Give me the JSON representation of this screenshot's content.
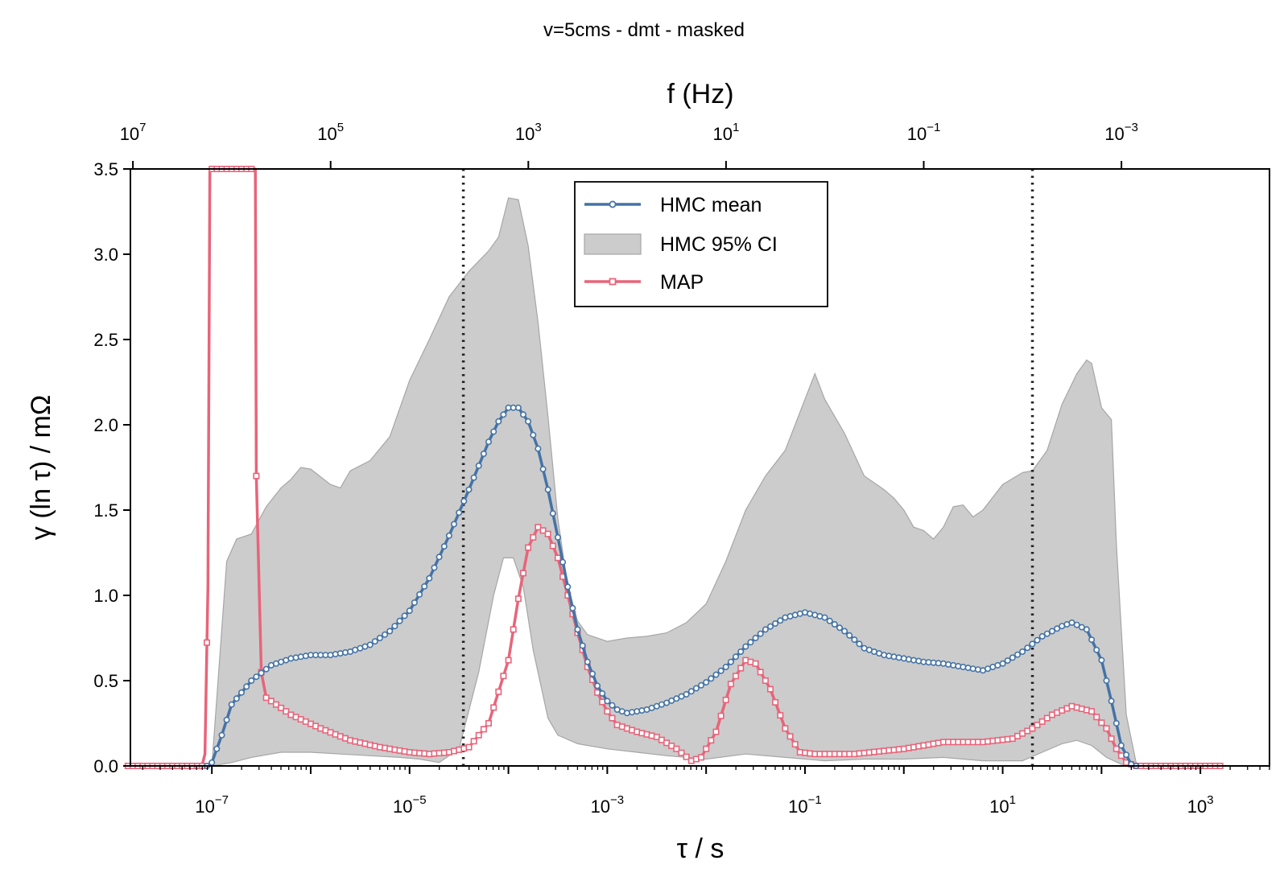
{
  "chart_data": {
    "type": "line",
    "title": "v=5cms - dmt - masked",
    "xlabel": "τ / s",
    "ylabel": "γ (ln τ) / mΩ",
    "x2label": "f (Hz)",
    "x_scale": "log",
    "xlim": [
      1.5e-08,
      5000
    ],
    "ylim": [
      0,
      3.5
    ],
    "yticks": [
      "0.0",
      "0.5",
      "1.0",
      "1.5",
      "2.0",
      "2.5",
      "3.0",
      "3.5"
    ],
    "xticks": [
      {
        "base": "10",
        "exp": "−7",
        "value": 1e-07
      },
      {
        "base": "10",
        "exp": "−5",
        "value": 1e-05
      },
      {
        "base": "10",
        "exp": "−3",
        "value": 0.001
      },
      {
        "base": "10",
        "exp": "−1",
        "value": 0.1
      },
      {
        "base": "10",
        "exp": "1",
        "value": 10
      },
      {
        "base": "10",
        "exp": "3",
        "value": 1000
      }
    ],
    "x2ticks": [
      {
        "base": "10",
        "exp": "7",
        "tau": 1.59e-08
      },
      {
        "base": "10",
        "exp": "5",
        "tau": 1.59e-06
      },
      {
        "base": "10",
        "exp": "3",
        "tau": 0.000159
      },
      {
        "base": "10",
        "exp": "1",
        "tau": 0.0159
      },
      {
        "base": "10",
        "exp": "−1",
        "tau": 1.59
      },
      {
        "base": "10",
        "exp": "−3",
        "tau": 159
      }
    ],
    "vlines": [
      3.5e-05,
      20
    ],
    "legend": {
      "position": "top-center",
      "entries": [
        "HMC mean",
        "HMC 95% CI",
        "MAP"
      ]
    },
    "colors": {
      "mean": "#4473a6",
      "map": "#e8647a",
      "ci_fill": "#cccccc",
      "ci_edge": "#a6a6a6",
      "vline": "#222222"
    },
    "series": [
      {
        "name": "HMC mean",
        "points": [
          [
            -7.05,
            0.0
          ],
          [
            -7.0,
            0.02
          ],
          [
            -6.9,
            0.18
          ],
          [
            -6.8,
            0.36
          ],
          [
            -6.6,
            0.5
          ],
          [
            -6.4,
            0.59
          ],
          [
            -6.2,
            0.63
          ],
          [
            -6.0,
            0.65
          ],
          [
            -5.8,
            0.65
          ],
          [
            -5.6,
            0.67
          ],
          [
            -5.4,
            0.71
          ],
          [
            -5.2,
            0.79
          ],
          [
            -5.0,
            0.91
          ],
          [
            -4.8,
            1.1
          ],
          [
            -4.6,
            1.35
          ],
          [
            -4.4,
            1.62
          ],
          [
            -4.3,
            1.76
          ],
          [
            -4.2,
            1.9
          ],
          [
            -4.1,
            2.02
          ],
          [
            -4.0,
            2.1
          ],
          [
            -3.9,
            2.1
          ],
          [
            -3.8,
            2.02
          ],
          [
            -3.7,
            1.86
          ],
          [
            -3.6,
            1.62
          ],
          [
            -3.5,
            1.34
          ],
          [
            -3.4,
            1.05
          ],
          [
            -3.3,
            0.8
          ],
          [
            -3.2,
            0.61
          ],
          [
            -3.1,
            0.47
          ],
          [
            -3.0,
            0.38
          ],
          [
            -2.9,
            0.33
          ],
          [
            -2.8,
            0.31
          ],
          [
            -2.6,
            0.33
          ],
          [
            -2.4,
            0.37
          ],
          [
            -2.2,
            0.42
          ],
          [
            -2.0,
            0.49
          ],
          [
            -1.8,
            0.58
          ],
          [
            -1.6,
            0.7
          ],
          [
            -1.4,
            0.8
          ],
          [
            -1.2,
            0.87
          ],
          [
            -1.0,
            0.9
          ],
          [
            -0.8,
            0.87
          ],
          [
            -0.6,
            0.79
          ],
          [
            -0.4,
            0.69
          ],
          [
            -0.2,
            0.65
          ],
          [
            0.0,
            0.63
          ],
          [
            0.2,
            0.61
          ],
          [
            0.4,
            0.6
          ],
          [
            0.6,
            0.58
          ],
          [
            0.8,
            0.56
          ],
          [
            1.0,
            0.6
          ],
          [
            1.2,
            0.67
          ],
          [
            1.4,
            0.76
          ],
          [
            1.6,
            0.82
          ],
          [
            1.7,
            0.84
          ],
          [
            1.85,
            0.8
          ],
          [
            2.0,
            0.62
          ],
          [
            2.1,
            0.38
          ],
          [
            2.2,
            0.12
          ],
          [
            2.3,
            0.01
          ],
          [
            2.35,
            0.0
          ]
        ]
      },
      {
        "name": "MAP",
        "points": [
          [
            -7.85,
            0.0
          ],
          [
            -7.1,
            0.0
          ],
          [
            -7.07,
            0.07
          ],
          [
            -7.04,
            1.05
          ],
          [
            -7.02,
            3.5
          ],
          [
            -6.56,
            3.5
          ],
          [
            -6.55,
            1.7
          ],
          [
            -6.5,
            0.55
          ],
          [
            -6.45,
            0.4
          ],
          [
            -6.2,
            0.3
          ],
          [
            -5.9,
            0.22
          ],
          [
            -5.6,
            0.15
          ],
          [
            -5.3,
            0.11
          ],
          [
            -5.0,
            0.08
          ],
          [
            -4.8,
            0.07
          ],
          [
            -4.6,
            0.08
          ],
          [
            -4.4,
            0.11
          ],
          [
            -4.2,
            0.25
          ],
          [
            -4.0,
            0.62
          ],
          [
            -3.9,
            0.98
          ],
          [
            -3.8,
            1.28
          ],
          [
            -3.7,
            1.4
          ],
          [
            -3.6,
            1.36
          ],
          [
            -3.5,
            1.22
          ],
          [
            -3.4,
            1.0
          ],
          [
            -3.3,
            0.78
          ],
          [
            -3.2,
            0.58
          ],
          [
            -3.1,
            0.43
          ],
          [
            -3.0,
            0.32
          ],
          [
            -2.9,
            0.24
          ],
          [
            -2.7,
            0.2
          ],
          [
            -2.5,
            0.17
          ],
          [
            -2.3,
            0.1
          ],
          [
            -2.15,
            0.03
          ],
          [
            -2.05,
            0.05
          ],
          [
            -1.9,
            0.2
          ],
          [
            -1.75,
            0.48
          ],
          [
            -1.6,
            0.62
          ],
          [
            -1.5,
            0.6
          ],
          [
            -1.35,
            0.45
          ],
          [
            -1.2,
            0.22
          ],
          [
            -1.05,
            0.08
          ],
          [
            -0.9,
            0.07
          ],
          [
            -0.5,
            0.07
          ],
          [
            0.0,
            0.1
          ],
          [
            0.4,
            0.14
          ],
          [
            0.8,
            0.14
          ],
          [
            1.1,
            0.16
          ],
          [
            1.3,
            0.22
          ],
          [
            1.5,
            0.3
          ],
          [
            1.7,
            0.35
          ],
          [
            1.9,
            0.32
          ],
          [
            2.05,
            0.22
          ],
          [
            2.15,
            0.1
          ],
          [
            2.25,
            0.02
          ],
          [
            2.35,
            0.0
          ],
          [
            3.2,
            0.0
          ]
        ]
      }
    ],
    "ci_band": {
      "name": "HMC 95% CI",
      "upper": [
        [
          -7.0,
          0.0
        ],
        [
          -6.85,
          1.2
        ],
        [
          -6.75,
          1.33
        ],
        [
          -6.6,
          1.36
        ],
        [
          -6.45,
          1.52
        ],
        [
          -6.3,
          1.63
        ],
        [
          -6.2,
          1.68
        ],
        [
          -6.1,
          1.75
        ],
        [
          -6.0,
          1.74
        ],
        [
          -5.8,
          1.65
        ],
        [
          -5.7,
          1.63
        ],
        [
          -5.6,
          1.73
        ],
        [
          -5.4,
          1.79
        ],
        [
          -5.2,
          1.93
        ],
        [
          -5.0,
          2.26
        ],
        [
          -4.8,
          2.5
        ],
        [
          -4.6,
          2.75
        ],
        [
          -4.4,
          2.9
        ],
        [
          -4.2,
          3.02
        ],
        [
          -4.1,
          3.1
        ],
        [
          -4.0,
          3.33
        ],
        [
          -3.9,
          3.32
        ],
        [
          -3.8,
          3.05
        ],
        [
          -3.7,
          2.6
        ],
        [
          -3.6,
          2.05
        ],
        [
          -3.5,
          1.45
        ],
        [
          -3.4,
          1.05
        ],
        [
          -3.3,
          0.85
        ],
        [
          -3.2,
          0.77
        ],
        [
          -3.0,
          0.73
        ],
        [
          -2.8,
          0.75
        ],
        [
          -2.6,
          0.76
        ],
        [
          -2.4,
          0.78
        ],
        [
          -2.2,
          0.84
        ],
        [
          -2.0,
          0.95
        ],
        [
          -1.8,
          1.2
        ],
        [
          -1.6,
          1.5
        ],
        [
          -1.4,
          1.7
        ],
        [
          -1.2,
          1.85
        ],
        [
          -1.0,
          2.15
        ],
        [
          -0.9,
          2.3
        ],
        [
          -0.8,
          2.15
        ],
        [
          -0.6,
          1.95
        ],
        [
          -0.4,
          1.7
        ],
        [
          -0.2,
          1.62
        ],
        [
          -0.1,
          1.57
        ],
        [
          0.0,
          1.5
        ],
        [
          0.1,
          1.4
        ],
        [
          0.2,
          1.38
        ],
        [
          0.3,
          1.33
        ],
        [
          0.4,
          1.4
        ],
        [
          0.5,
          1.52
        ],
        [
          0.6,
          1.53
        ],
        [
          0.7,
          1.46
        ],
        [
          0.8,
          1.5
        ],
        [
          1.0,
          1.65
        ],
        [
          1.2,
          1.72
        ],
        [
          1.3,
          1.73
        ],
        [
          1.45,
          1.85
        ],
        [
          1.6,
          2.12
        ],
        [
          1.75,
          2.3
        ],
        [
          1.85,
          2.38
        ],
        [
          1.9,
          2.36
        ],
        [
          2.0,
          2.1
        ],
        [
          2.1,
          2.03
        ],
        [
          2.15,
          1.3
        ],
        [
          2.25,
          0.3
        ],
        [
          2.35,
          0.02
        ],
        [
          2.4,
          0.0
        ]
      ],
      "lower": [
        [
          -7.0,
          0.0
        ],
        [
          -6.8,
          0.02
        ],
        [
          -6.6,
          0.05
        ],
        [
          -6.3,
          0.08
        ],
        [
          -6.0,
          0.08
        ],
        [
          -5.7,
          0.07
        ],
        [
          -5.4,
          0.06
        ],
        [
          -5.1,
          0.05
        ],
        [
          -4.9,
          0.04
        ],
        [
          -4.7,
          0.02
        ],
        [
          -4.5,
          0.1
        ],
        [
          -4.3,
          0.55
        ],
        [
          -4.15,
          1.0
        ],
        [
          -4.05,
          1.22
        ],
        [
          -3.95,
          1.22
        ],
        [
          -3.85,
          1.05
        ],
        [
          -3.75,
          0.68
        ],
        [
          -3.6,
          0.28
        ],
        [
          -3.5,
          0.18
        ],
        [
          -3.3,
          0.13
        ],
        [
          -3.0,
          0.1
        ],
        [
          -2.7,
          0.08
        ],
        [
          -2.4,
          0.06
        ],
        [
          -2.0,
          0.04
        ],
        [
          -1.6,
          0.07
        ],
        [
          -1.2,
          0.05
        ],
        [
          -0.8,
          0.03
        ],
        [
          -0.4,
          0.04
        ],
        [
          0.0,
          0.04
        ],
        [
          0.4,
          0.05
        ],
        [
          0.8,
          0.03
        ],
        [
          1.2,
          0.03
        ],
        [
          1.4,
          0.08
        ],
        [
          1.6,
          0.13
        ],
        [
          1.75,
          0.15
        ],
        [
          1.9,
          0.12
        ],
        [
          2.05,
          0.05
        ],
        [
          2.2,
          0.01
        ],
        [
          2.4,
          0.0
        ]
      ]
    }
  }
}
